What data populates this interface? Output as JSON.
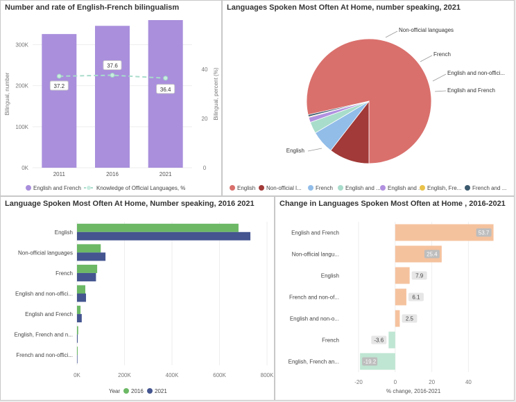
{
  "panels": {
    "p1": {
      "title": "Number and rate of English-French bilingualism",
      "legend": [
        {
          "label": "English and French",
          "color": "#a98fdc",
          "marker": "dot"
        },
        {
          "label": "Knowledge of Official Languages, %",
          "color": "#a8dccb",
          "marker": "dash-dot"
        }
      ]
    },
    "p2": {
      "title": "Languages Spoken Most Often At Home, number speaking, 2021",
      "legend": [
        {
          "label": "English",
          "color": "#d9706c"
        },
        {
          "label": "Non-official l...",
          "color": "#a13a38"
        },
        {
          "label": "French",
          "color": "#92bde9"
        },
        {
          "label": "English and ...",
          "color": "#a8dccb"
        },
        {
          "label": "English and ...",
          "color": "#b190e0"
        },
        {
          "label": "English, Fre...",
          "color": "#e9c24a"
        },
        {
          "label": "French and ...",
          "color": "#3c5a6e"
        }
      ]
    },
    "p3": {
      "title": "Language Spoken Most Often At Home, Number speaking, 2016  2021",
      "legend_title": "Year",
      "legend": [
        {
          "label": "2016",
          "color": "#6cb865"
        },
        {
          "label": "2021",
          "color": "#445590"
        }
      ]
    },
    "p4": {
      "title": "Change in Languages Spoken Most Often at Home , 2016-2021"
    }
  },
  "chart_data": [
    {
      "type": "bar",
      "categories": [
        "2011",
        "2016",
        "2021"
      ],
      "series": [
        {
          "name": "English and French",
          "values": [
            326000,
            346000,
            360000
          ],
          "axis": "left",
          "chart": "bar"
        },
        {
          "name": "Knowledge of Official Languages, %",
          "values": [
            37.2,
            37.6,
            36.4
          ],
          "axis": "right",
          "chart": "line"
        }
      ],
      "ylabel": "Bilingual, number",
      "ylabel_right": "Bilingual, percent (%)",
      "yticks": [
        "0K",
        "100K",
        "200K",
        "300K"
      ],
      "yticks_right": [
        "0",
        "20",
        "40"
      ],
      "ylim": [
        0,
        360000
      ],
      "ylim_right": [
        0,
        60
      ],
      "data_labels": [
        "37.2",
        "37.6",
        "36.4"
      ],
      "colors": {
        "bar": "#a98fdc",
        "line": "#a8dccb"
      }
    },
    {
      "type": "pie",
      "slices": [
        {
          "label": "English",
          "value": 78.5,
          "color": "#d9706c"
        },
        {
          "label": "Non-official languages",
          "value": 10.5,
          "color": "#a13a38"
        },
        {
          "label": "French",
          "value": 6.0,
          "color": "#92bde9"
        },
        {
          "label": "English and non-official...",
          "value": 3.0,
          "color": "#a8dccb"
        },
        {
          "label": "English and French",
          "value": 1.3,
          "color": "#b190e0"
        },
        {
          "label": "English, French and non-official",
          "value": 0.2,
          "color": "#e9c24a"
        },
        {
          "label": "French and non-official",
          "value": 0.5,
          "color": "#3c5a6e"
        }
      ],
      "callouts": [
        "Non-official languages",
        "French",
        "English and non-offici...",
        "English and French",
        "English"
      ]
    },
    {
      "type": "bar",
      "orientation": "horizontal",
      "categories": [
        "English",
        "Non-official languages",
        "French",
        "English and non-offici...",
        "English and French",
        "English, French and n...",
        "French and non-offici..."
      ],
      "series": [
        {
          "name": "2016",
          "values": [
            680000,
            100000,
            85000,
            35000,
            15000,
            5000,
            3000
          ],
          "color": "#6cb865"
        },
        {
          "name": "2021",
          "values": [
            730000,
            120000,
            80000,
            38000,
            20000,
            3000,
            2000
          ],
          "color": "#445590"
        }
      ],
      "xticks": [
        "0K",
        "200K",
        "400K",
        "600K",
        "800K"
      ],
      "xlim": [
        0,
        800000
      ]
    },
    {
      "type": "bar",
      "orientation": "horizontal",
      "categories": [
        "English and French",
        "Non-official langu...",
        "English",
        "French and non-of...",
        "English and non-o...",
        "French",
        "English, French an..."
      ],
      "values": [
        53.7,
        25.4,
        7.9,
        6.1,
        2.5,
        -3.6,
        -19.2
      ],
      "labels": [
        "53.7",
        "25.4",
        "7.9",
        "6.1",
        "2.5",
        "-3.6",
        "-19.2"
      ],
      "xlabel": "% change, 2016-2021",
      "xticks": [
        "-20",
        "0",
        "20",
        "40"
      ],
      "xlim": [
        -20,
        55
      ],
      "colors": {
        "positive": "#f5c29e",
        "negative": "#bfe6d2"
      }
    }
  ]
}
